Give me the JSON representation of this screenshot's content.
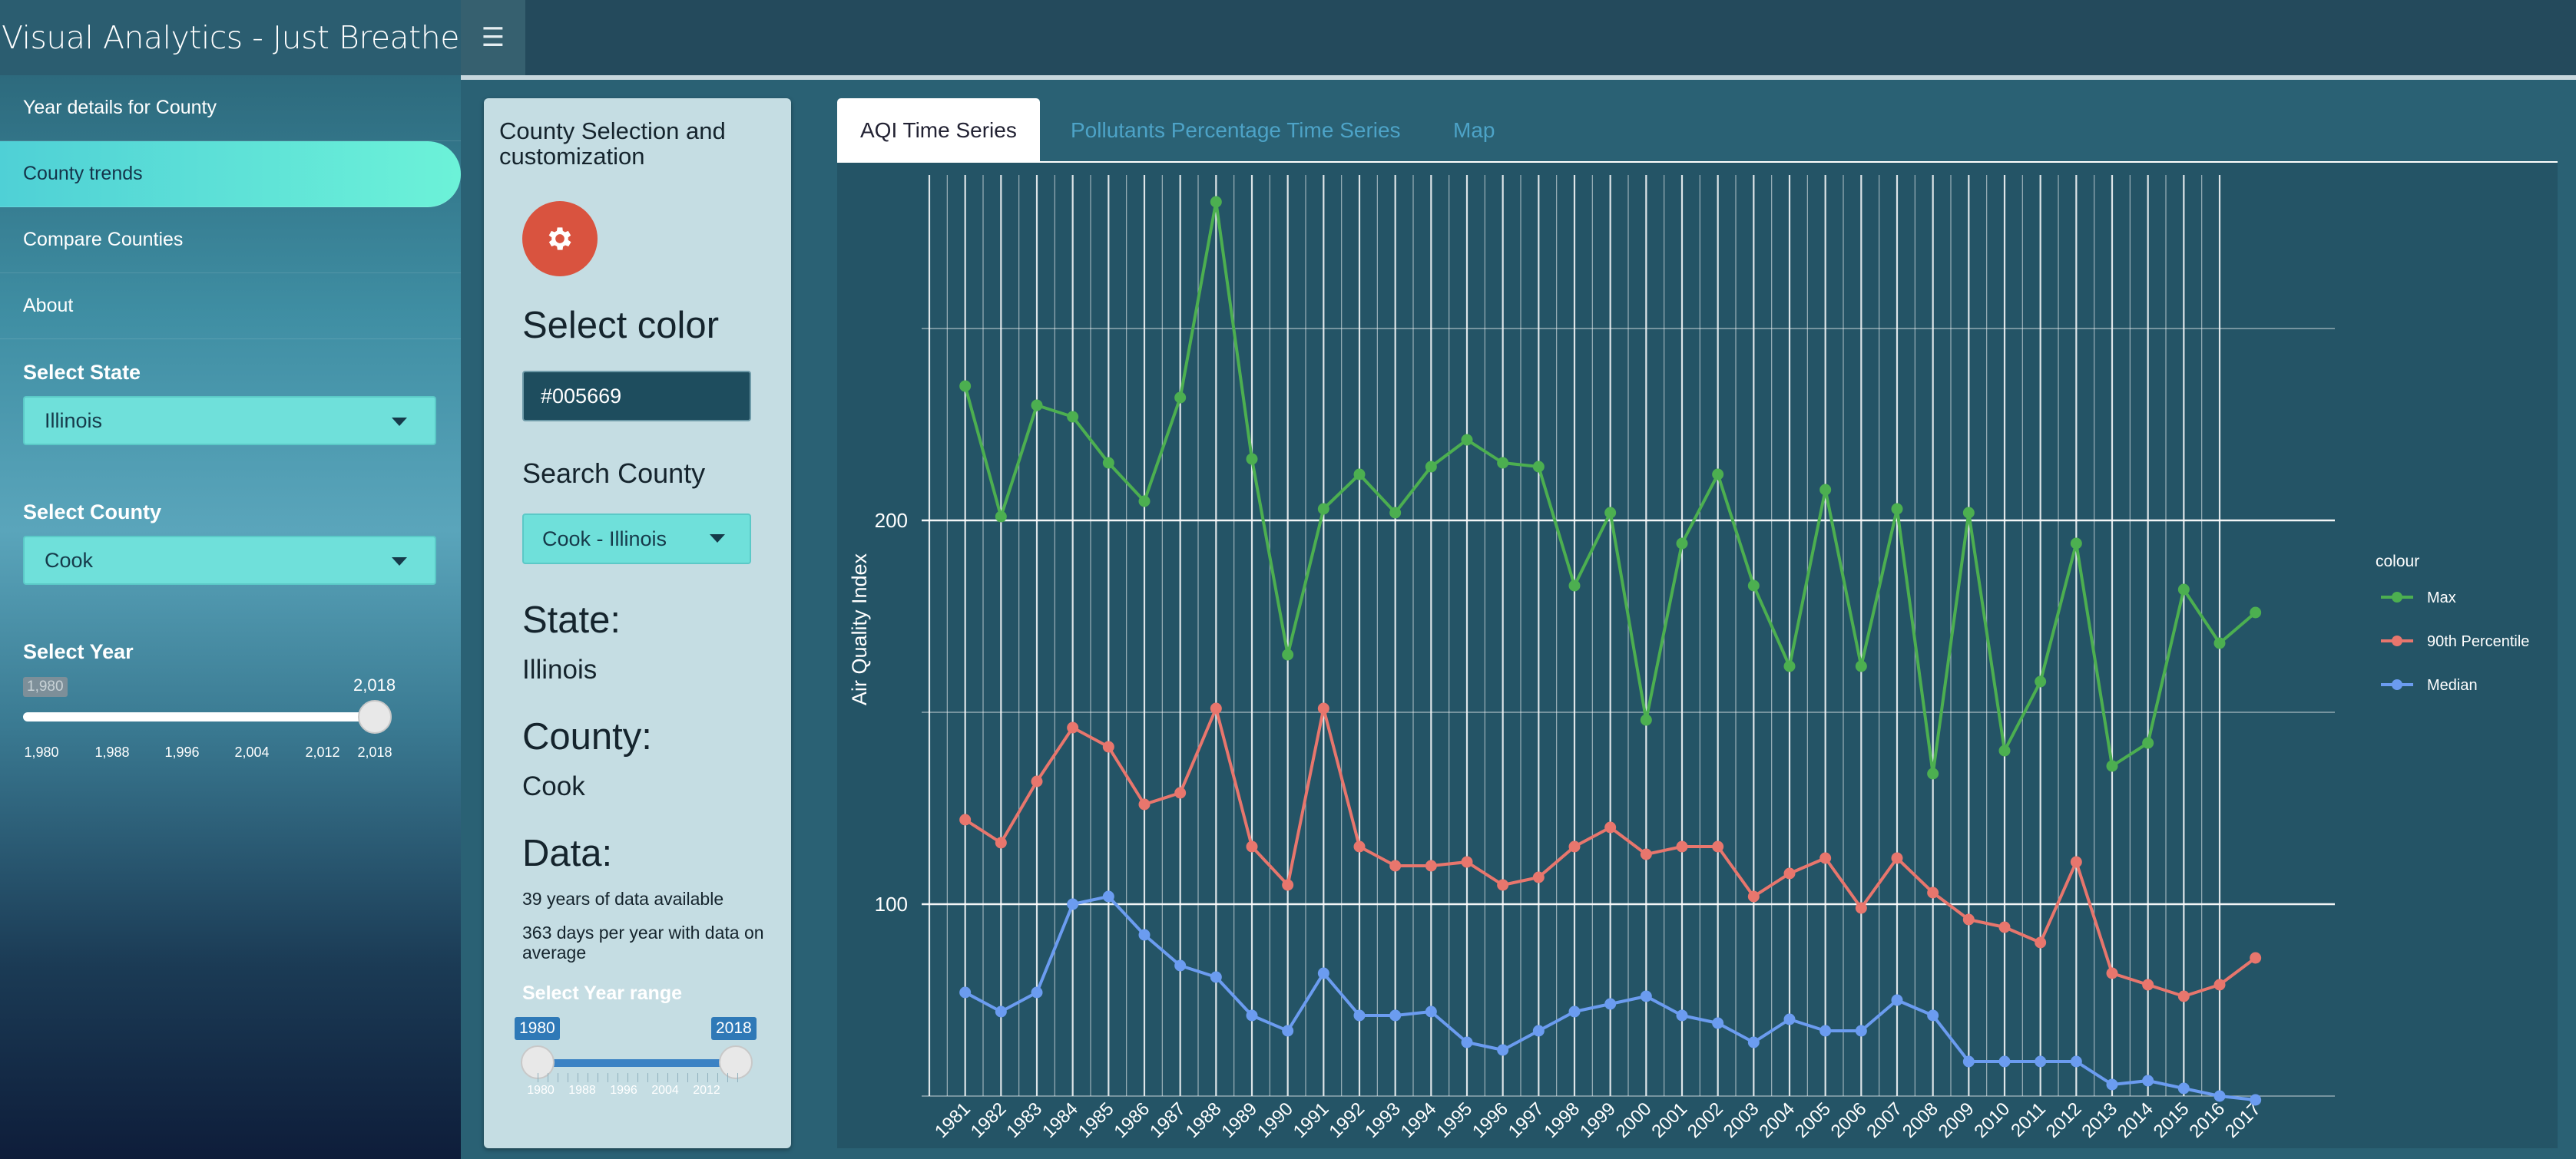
{
  "app": {
    "title": "Visual Analytics - Just Breathe",
    "menu_icon": "hamburger-icon"
  },
  "sidebar": {
    "items": [
      {
        "label": "Year details for County",
        "active": false
      },
      {
        "label": "County trends",
        "active": true
      },
      {
        "label": "Compare Counties",
        "active": false
      },
      {
        "label": "About",
        "active": false
      }
    ],
    "state": {
      "label": "Select State",
      "value": "Illinois"
    },
    "county": {
      "label": "Select County",
      "value": "Cook"
    },
    "year": {
      "label": "Select Year",
      "min": "1,980",
      "max": "2,018",
      "value": "2,018",
      "ticks": [
        "1,980",
        "1,988",
        "1,996",
        "2,004",
        "2,012",
        "2,018"
      ]
    }
  },
  "panel": {
    "title": "County Selection and customization",
    "gear_icon": "gear-icon",
    "color_heading": "Select color",
    "color_value": "#005669",
    "search_heading": "Search County",
    "search_value": "Cook - Illinois",
    "state_heading": "State:",
    "state_value": "Illinois",
    "county_heading": "County:",
    "county_value": "Cook",
    "data_heading": "Data:",
    "data_years": "39 years of data available",
    "data_days": "363 days per year with data on average",
    "range": {
      "label": "Select Year range",
      "from": "1980",
      "to": "2018",
      "ticks": [
        "1980",
        "1988",
        "1996",
        "2004",
        "2012"
      ]
    }
  },
  "tabs": [
    {
      "label": "AQI Time Series",
      "active": true
    },
    {
      "label": "Pollutants Percentage Time Series",
      "active": false
    },
    {
      "label": "Map",
      "active": false
    }
  ],
  "colors": {
    "max": "#4caf50",
    "p90": "#e8766d",
    "median": "#6b9cf0",
    "accent": "#6fe0da",
    "gear_button": "#d9533f"
  },
  "chart_data": {
    "type": "line",
    "ylabel": "Air Quality Index",
    "yticks": [
      100,
      200
    ],
    "ylim": [
      50,
      290
    ],
    "x": [
      "1981",
      "1982",
      "1983",
      "1984",
      "1985",
      "1986",
      "1987",
      "1988",
      "1989",
      "1990",
      "1991",
      "1992",
      "1993",
      "1994",
      "1995",
      "1996",
      "1997",
      "1998",
      "1999",
      "2000",
      "2001",
      "2002",
      "2003",
      "2004",
      "2005",
      "2006",
      "2007",
      "2008",
      "2009",
      "2010",
      "2011",
      "2012",
      "2013",
      "2014",
      "2015",
      "2016",
      "2017"
    ],
    "legend": {
      "title": "colour",
      "position": "right"
    },
    "grid": true,
    "series": [
      {
        "name": "Max",
        "values": [
          235,
          201,
          230,
          227,
          215,
          205,
          232,
          283,
          216,
          165,
          203,
          212,
          202,
          214,
          221,
          215,
          214,
          183,
          202,
          148,
          194,
          212,
          183,
          162,
          208,
          162,
          203,
          134,
          202,
          140,
          158,
          194,
          136,
          142,
          182,
          168,
          176
        ]
      },
      {
        "name": "90th Percentile",
        "values": [
          122,
          116,
          132,
          146,
          141,
          126,
          129,
          151,
          115,
          105,
          151,
          115,
          110,
          110,
          111,
          105,
          107,
          115,
          120,
          113,
          115,
          115,
          102,
          108,
          112,
          99,
          112,
          103,
          96,
          94,
          90,
          111,
          82,
          79,
          76,
          79,
          86
        ]
      },
      {
        "name": "Median",
        "values": [
          77,
          72,
          77,
          100,
          102,
          92,
          84,
          81,
          71,
          67,
          82,
          71,
          71,
          72,
          64,
          62,
          67,
          72,
          74,
          76,
          71,
          69,
          64,
          70,
          67,
          67,
          75,
          71,
          59,
          59,
          59,
          59,
          53,
          54,
          52,
          50,
          49
        ]
      }
    ]
  }
}
